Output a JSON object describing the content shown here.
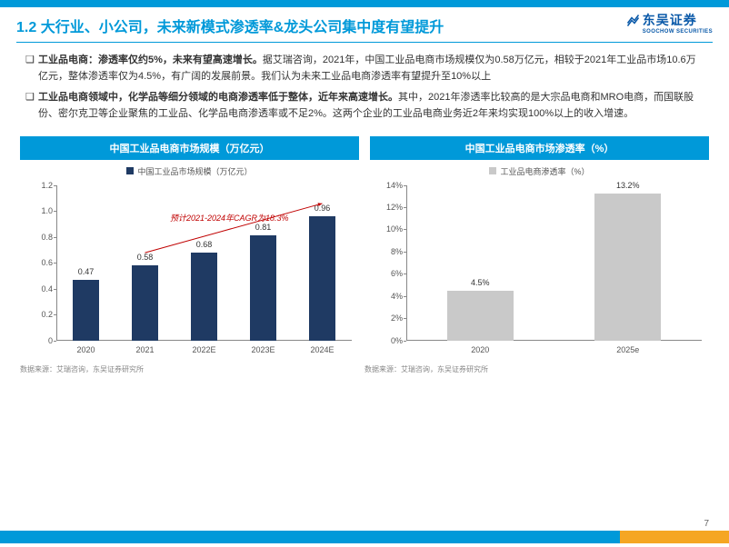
{
  "header": {
    "title": "1.2 大行业、小公司，未来新模式渗透率&龙头公司集中度有望提升",
    "logo_cn": "东吴证券",
    "logo_en": "SOOCHOW SECURITIES"
  },
  "para1": {
    "marker": "❑",
    "bold": "工业品电商：渗透率仅约5%，未来有望高速增长。",
    "rest": "据艾瑞咨询，2021年，中国工业品电商市场规模仅为0.58万亿元，相较于2021年工业品市场10.6万亿元，整体渗透率仅为4.5%，有广阔的发展前景。我们认为未来工业品电商渗透率有望提升至10%以上"
  },
  "para2": {
    "marker": "❑",
    "bold": "工业品电商领域中，化学品等细分领域的电商渗透率低于整体，近年来高速增长。",
    "rest": "其中，2021年渗透率比较高的是大宗品电商和MRO电商，而国联股份、密尔克卫等企业聚焦的工业品、化学品电商渗透率或不足2%。这两个企业的工业品电商业务近2年来均实现100%以上的收入增速。"
  },
  "chart1": {
    "title": "中国工业品电商市场规模（万亿元）",
    "legend": "中国工业品市场规模（万亿元）",
    "type": "bar",
    "categories": [
      "2020",
      "2021",
      "2022E",
      "2023E",
      "2024E"
    ],
    "values": [
      0.47,
      0.58,
      0.68,
      0.81,
      0.96
    ],
    "ylim": [
      0,
      1.2
    ],
    "ytick_step": 0.2,
    "bar_color": "#1f3a63",
    "legend_swatch": "#1f3a63",
    "annotation": "预计2021-2024年CAGR为18.3%",
    "annotation_color": "#c00000",
    "source": "数据来源：艾瑞咨询，东吴证券研究所"
  },
  "chart2": {
    "title": "中国工业品电商市场渗透率（%）",
    "legend": "工业品电商渗透率（%）",
    "type": "bar",
    "categories": [
      "2020",
      "2025e"
    ],
    "values": [
      4.5,
      13.2
    ],
    "display_values": [
      "4.5%",
      "13.2%"
    ],
    "ylim": [
      0,
      14
    ],
    "ytick_step": 2,
    "bar_color": "#c9c9c9",
    "legend_swatch": "#c9c9c9",
    "source": "数据来源：艾瑞咨询，东吴证券研究所"
  },
  "page_number": "7",
  "colors": {
    "primary": "#0099d9",
    "accent": "#f5a623",
    "logo": "#0858a8"
  }
}
